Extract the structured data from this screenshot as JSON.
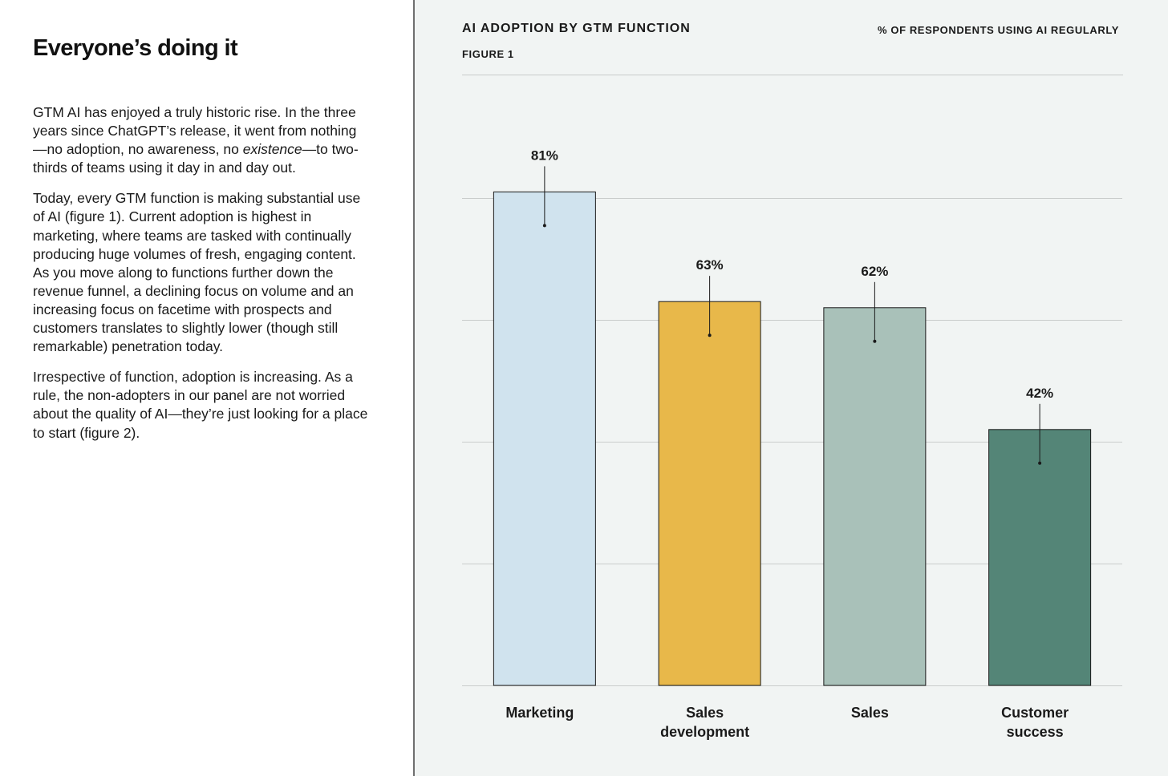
{
  "article": {
    "heading": "Everyone’s doing it",
    "p1_before": "GTM AI has enjoyed a truly historic rise. In the three years since ChatGPT’s release, it went from nothing—no adoption, no awareness, no ",
    "p1_italic": "existence",
    "p1_after": "—to two-thirds of teams using it day in and day out.",
    "p2": "Today, every GTM function is making substantial use of AI (figure 1). Current adoption is highest in marketing, where teams are tasked with continually producing huge volumes of fresh, engaging content. As you move along to functions further down the revenue funnel, a declining focus on volume and an increasing focus on facetime with prospects and customers translates to slightly lower (though still remarkable) penetration today.",
    "p3": "Irrespective of function, adoption is increasing. As a rule, the non-adopters in our panel are not worried about the quality of AI—they’re just looking for a place to start (figure 2)."
  },
  "figure": {
    "label": "FIGURE 1"
  },
  "colors": {
    "marketing": "#d0e3ee",
    "sales_development": "#e8b84a",
    "sales": "#a9c1b9",
    "customer_success": "#548577",
    "gridline": "#c9cccb",
    "bar_stroke": "#1a1a1a"
  },
  "chart_data": {
    "type": "bar",
    "title": "AI ADOPTION BY GTM FUNCTION",
    "subtitle": "% OF RESPONDENTS USING AI REGULARLY",
    "categories": [
      {
        "line1": "Marketing",
        "line2": ""
      },
      {
        "line1": "Sales",
        "line2": "development"
      },
      {
        "line1": "Sales",
        "line2": ""
      },
      {
        "line1": "Customer",
        "line2": "success"
      }
    ],
    "values": [
      81,
      63,
      62,
      42
    ],
    "value_labels": [
      "81%",
      "63%",
      "62%",
      "42%"
    ],
    "ylim": [
      0,
      100
    ],
    "gridlines": [
      0,
      20,
      40,
      60,
      80
    ],
    "xlabel": "",
    "ylabel": "",
    "legend": "none"
  }
}
